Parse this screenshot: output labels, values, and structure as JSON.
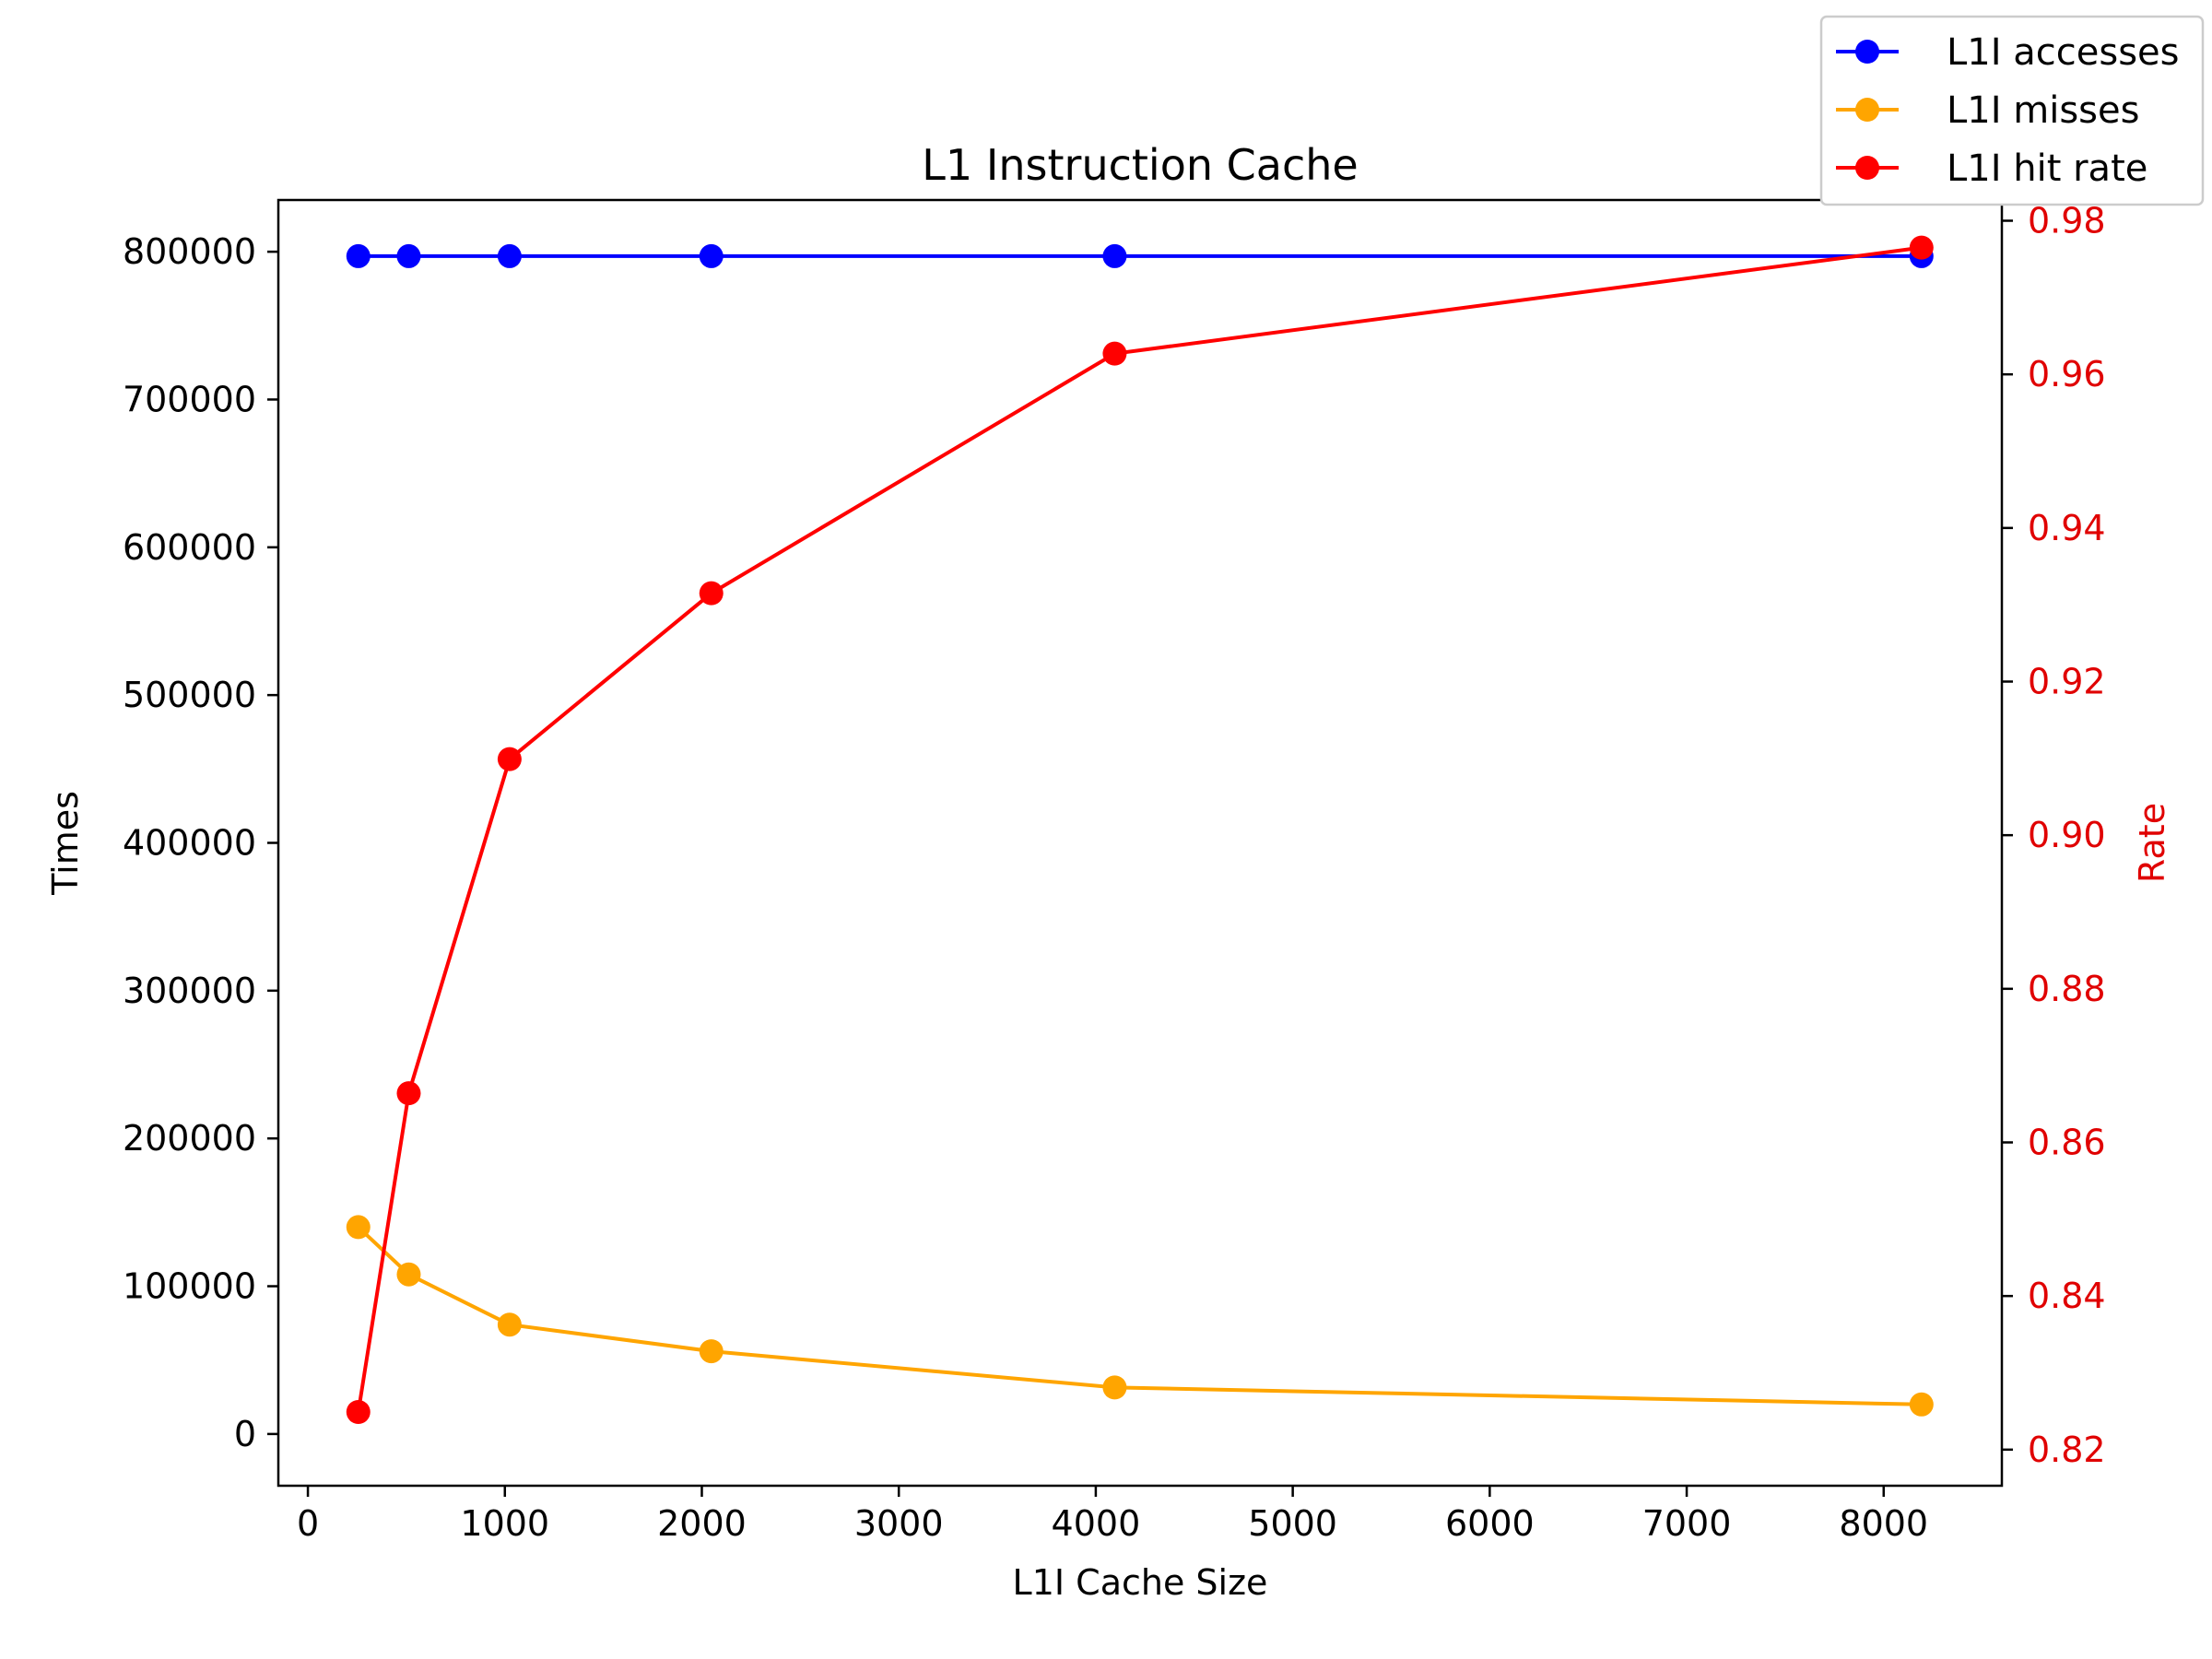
{
  "chart_data": {
    "type": "line",
    "title": "L1 Instruction Cache",
    "xlabel": "L1I Cache Size",
    "ylabel": "Times",
    "y2label": "Rate",
    "xlim": [
      -150,
      8600
    ],
    "ylim": [
      -35000,
      835000
    ],
    "y2lim": [
      0.8153,
      0.9827
    ],
    "xticks": [
      0,
      1000,
      2000,
      3000,
      4000,
      5000,
      6000,
      7000,
      8000
    ],
    "yticks": [
      0,
      100000,
      200000,
      300000,
      400000,
      500000,
      600000,
      700000,
      800000
    ],
    "y2ticks": [
      "0.82",
      "0.84",
      "0.86",
      "0.88",
      "0.90",
      "0.92",
      "0.94",
      "0.96",
      "0.98"
    ],
    "x": [
      256,
      512,
      1024,
      2048,
      4096,
      8192
    ],
    "grid": false,
    "legend_position": "top-right",
    "series": [
      {
        "name": "L1I accesses",
        "axis": "left",
        "color": "#0000ff",
        "values": [
          797000,
          797000,
          797000,
          797000,
          797000,
          797000
        ]
      },
      {
        "name": "L1I misses",
        "axis": "left",
        "color": "#ffa500",
        "values": [
          140000,
          108000,
          74000,
          56000,
          31500,
          20000
        ]
      },
      {
        "name": "L1I hit rate",
        "axis": "right",
        "color": "#ff0000",
        "values": [
          0.8249,
          0.8664,
          0.9099,
          0.9315,
          0.9627,
          0.9765
        ]
      }
    ]
  }
}
